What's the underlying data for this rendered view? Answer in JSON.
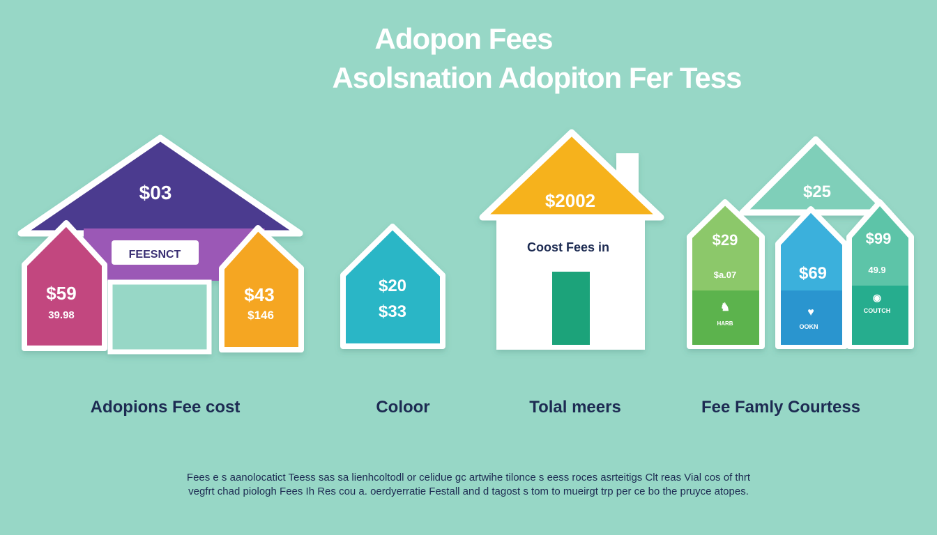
{
  "title": {
    "line1": "Adopon Fees",
    "line2": "Asolsnation  Adopiton Fer Tess"
  },
  "colors": {
    "background": "#97d7c6",
    "purple": "#4b3a8f",
    "pink": "#c2477f",
    "orange": "#f5a623",
    "teal": "#29b6c6",
    "green": "#7ac15a",
    "blue": "#2fa3d8",
    "sea": "#2db395",
    "text": "#1d2b52"
  },
  "house1": {
    "roof_price": "$03",
    "banner": "FEESNCT",
    "left_price": "$59",
    "left_sub": "39.98",
    "right_price": "$43",
    "right_sub": "$146",
    "caption": "Adopions Fee cost"
  },
  "house2": {
    "price": "$20",
    "sub": "$33",
    "caption": "Coloor"
  },
  "house3": {
    "roof_price": "$2002",
    "body_text": "Coost Fees in",
    "caption": "Tolal meers"
  },
  "house4": {
    "roof_price": "$25",
    "left_price": "$29",
    "left_sub": "$a.07",
    "left_label": "HARB",
    "mid_price": "$69",
    "mid_label": "OOKN",
    "right_price": "$99",
    "right_sub": "49.9",
    "right_label": "COUTCH",
    "caption": "Fee Famly Courtess"
  },
  "footer": {
    "line1": "Fees e s aanolocatict Teess sas sa lienhcoltodl or celidue gc artwihe tilonce s eess roces asrteitigs Clt reas Vial cos of thrt",
    "line2": "vegfrt chad piologh Fees Ih Res cou a. oerdyerratie Festall and d tagost s tom to mueirgt trp per ce bo the pruyce atopes."
  }
}
